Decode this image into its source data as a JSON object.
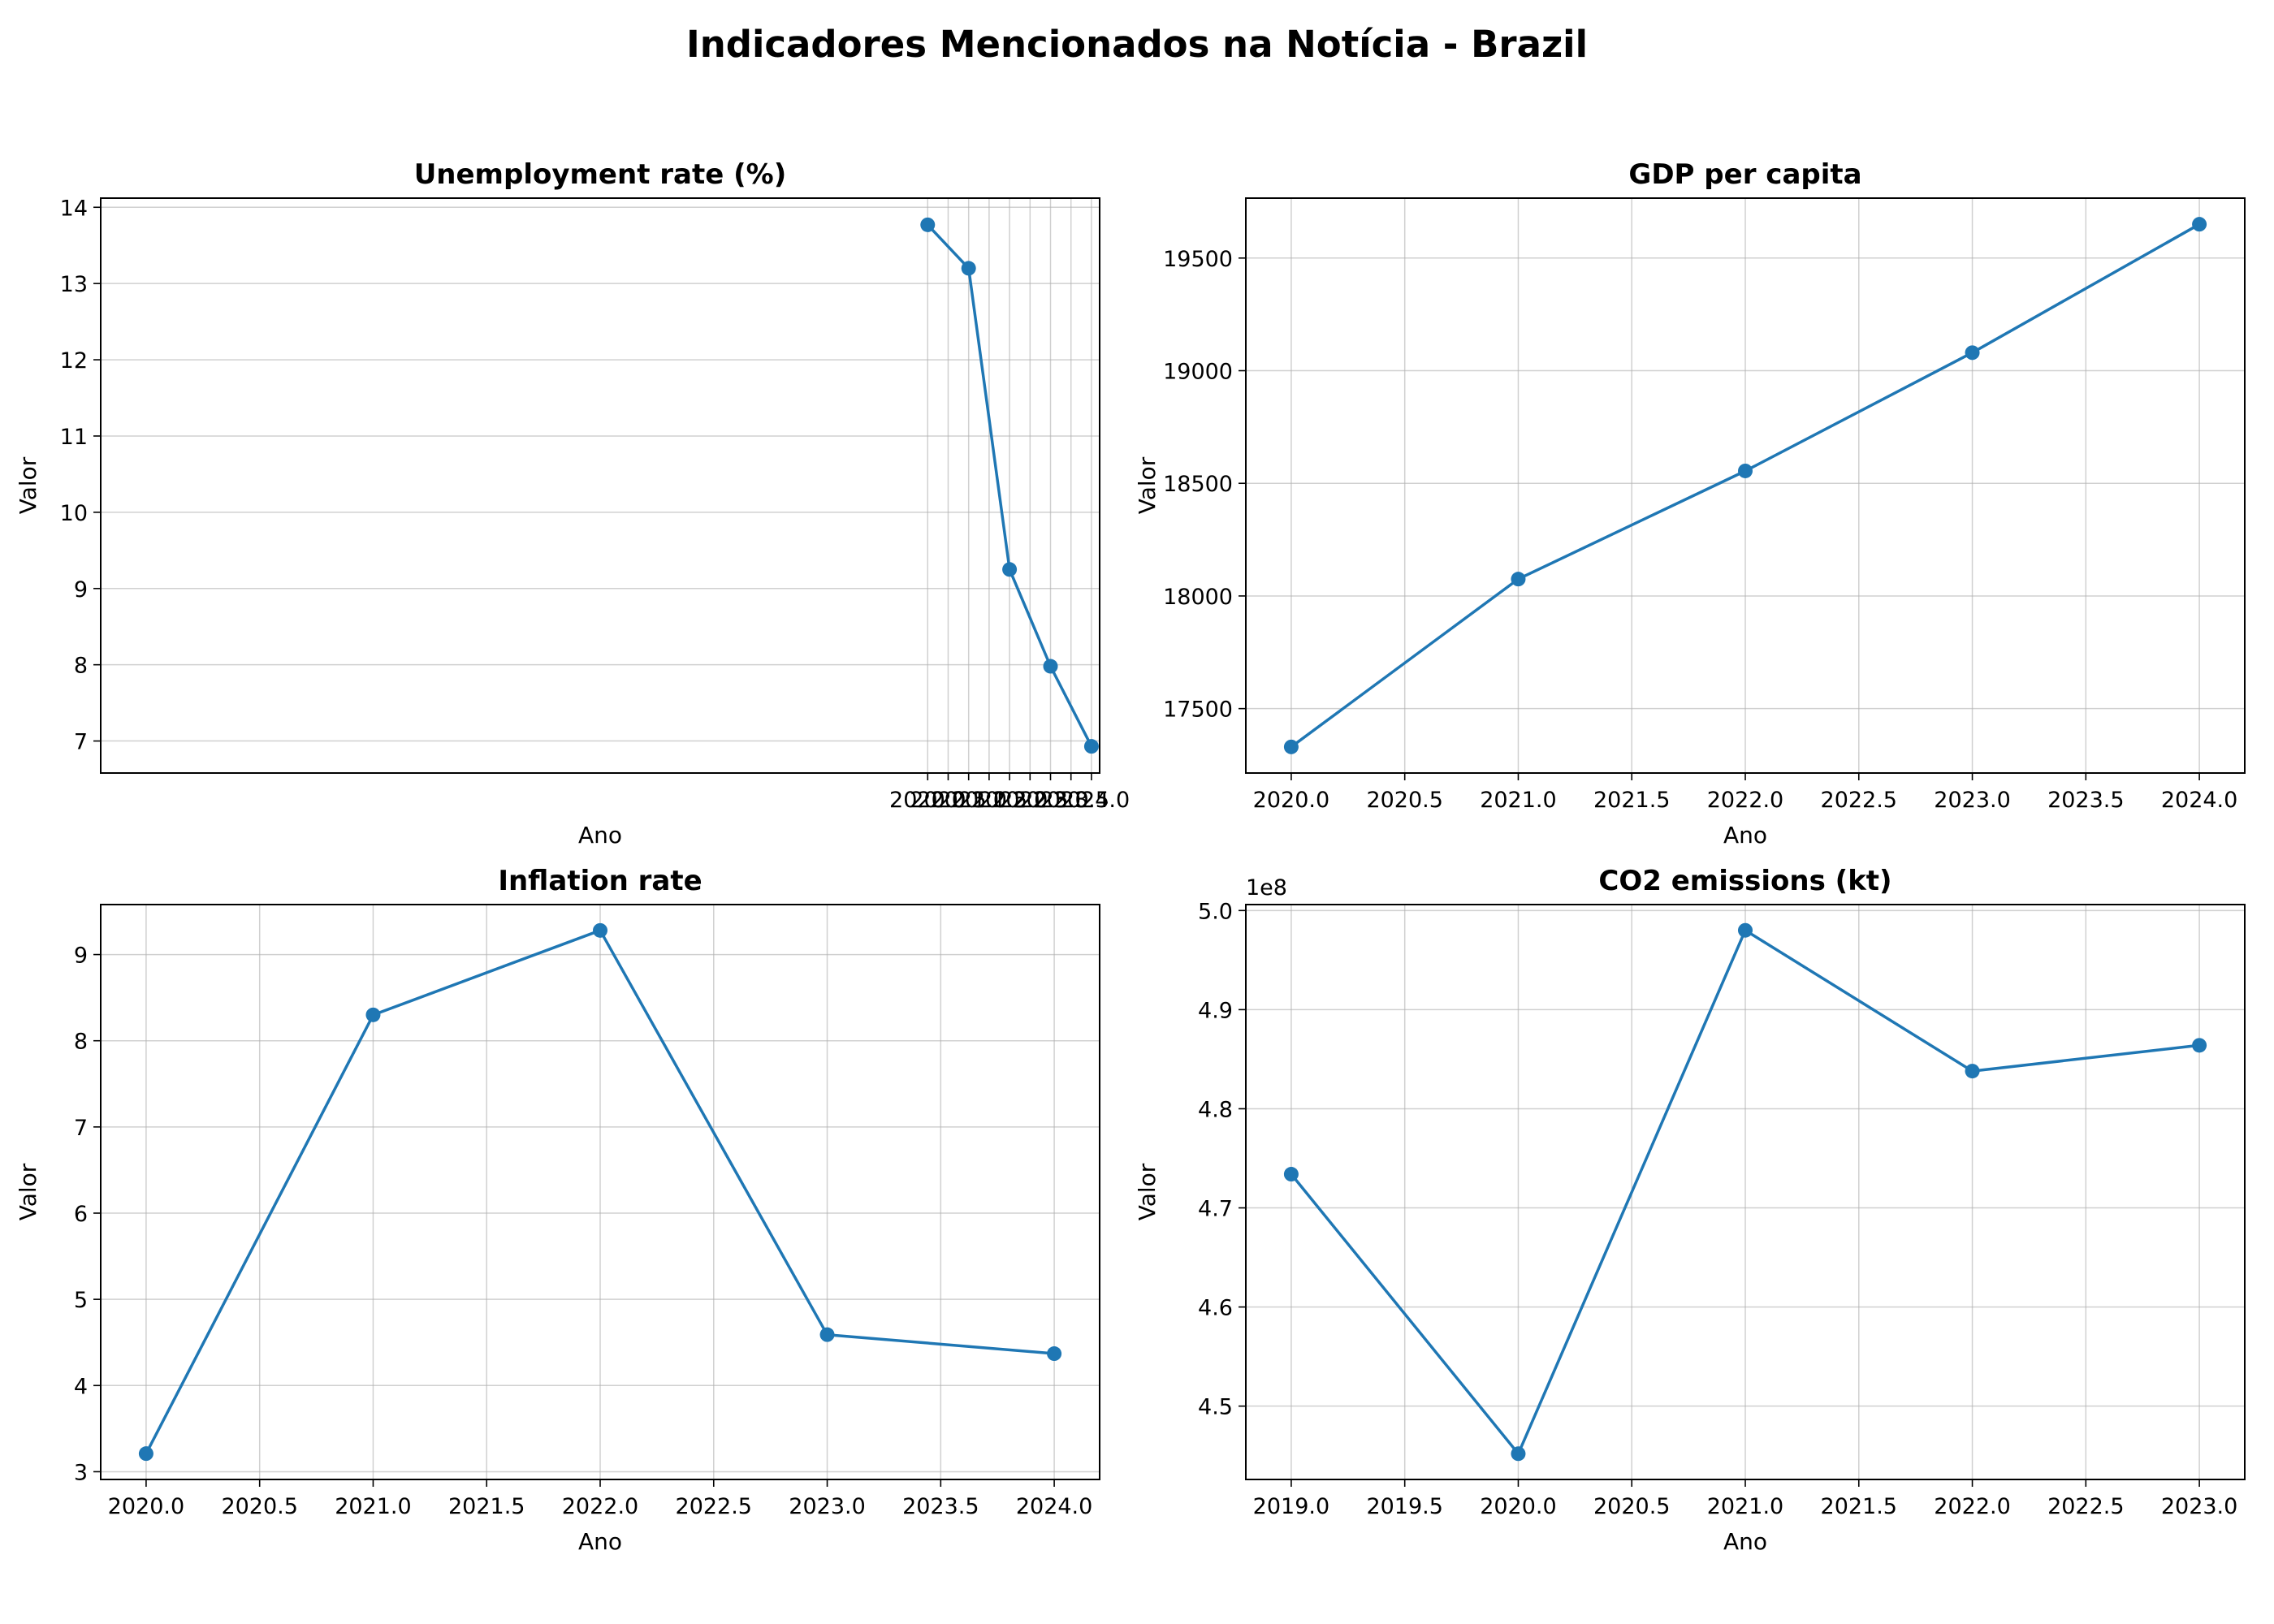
{
  "page_title": "Indicadores Mencionados na Notícia - Brazil",
  "chart_data": [
    {
      "type": "line",
      "title": "Unemployment rate (%)",
      "xlabel": "Ano",
      "ylabel": "Valor",
      "x": [
        2020,
        2021,
        2022,
        2023,
        2024
      ],
      "series": [
        {
          "values": [
            13.77,
            13.2,
            9.25,
            7.98,
            6.93
          ]
        }
      ],
      "xlim": [
        1999.8,
        2024.2
      ],
      "ylim": [
        6.58,
        14.12
      ],
      "xticks": [
        2020,
        2020.5,
        2021,
        2021.5,
        2022,
        2022.5,
        2023,
        2023.5,
        2024
      ],
      "yticks": [
        7,
        8,
        9,
        10,
        11,
        12,
        13,
        14
      ],
      "tick_labels_x": [
        "2020.0",
        "2020.5",
        "2021.0",
        "2021.5",
        "2022.0",
        "2022.5",
        "2023.0",
        "2023.5",
        "2024.0"
      ],
      "tick_labels_y": [
        "7",
        "8",
        "9",
        "10",
        "11",
        "12",
        "13",
        "14"
      ],
      "y_offset_text": "",
      "grid": true,
      "color": "#1f77b4"
    },
    {
      "type": "line",
      "title": "GDP per capita",
      "xlabel": "Ano",
      "ylabel": "Valor",
      "x": [
        2020,
        2021,
        2022,
        2023,
        2024
      ],
      "series": [
        {
          "values": [
            17330,
            18075,
            18555,
            19080,
            19650
          ]
        }
      ],
      "xlim": [
        2019.8,
        2024.2
      ],
      "ylim": [
        17214,
        19766
      ],
      "xticks": [
        2020,
        2020.5,
        2021,
        2021.5,
        2022,
        2022.5,
        2023,
        2023.5,
        2024
      ],
      "yticks": [
        17500,
        18000,
        18500,
        19000,
        19500
      ],
      "tick_labels_x": [
        "2020.0",
        "2020.5",
        "2021.0",
        "2021.5",
        "2022.0",
        "2022.5",
        "2023.0",
        "2023.5",
        "2024.0"
      ],
      "tick_labels_y": [
        "17500",
        "18000",
        "18500",
        "19000",
        "19500"
      ],
      "y_offset_text": "",
      "grid": true,
      "color": "#1f77b4"
    },
    {
      "type": "line",
      "title": "Inflation rate",
      "xlabel": "Ano",
      "ylabel": "Valor",
      "x": [
        2020,
        2021,
        2022,
        2023,
        2024
      ],
      "series": [
        {
          "values": [
            3.21,
            8.3,
            9.28,
            4.59,
            4.37
          ]
        }
      ],
      "xlim": [
        2019.8,
        2024.2
      ],
      "ylim": [
        2.91,
        9.58
      ],
      "xticks": [
        2020,
        2020.5,
        2021,
        2021.5,
        2022,
        2022.5,
        2023,
        2023.5,
        2024
      ],
      "yticks": [
        3,
        4,
        5,
        6,
        7,
        8,
        9
      ],
      "tick_labels_x": [
        "2020.0",
        "2020.5",
        "2021.0",
        "2021.5",
        "2022.0",
        "2022.5",
        "2023.0",
        "2023.5",
        "2024.0"
      ],
      "tick_labels_y": [
        "3",
        "4",
        "5",
        "6",
        "7",
        "8",
        "9"
      ],
      "y_offset_text": "",
      "grid": true,
      "color": "#1f77b4"
    },
    {
      "type": "line",
      "title": "CO2 emissions (kt)",
      "xlabel": "Ano",
      "ylabel": "Valor",
      "x": [
        2019,
        2020,
        2021,
        2022,
        2023
      ],
      "series": [
        {
          "values": [
            4.734,
            4.452,
            4.98,
            4.838,
            4.864
          ]
        }
      ],
      "xlim": [
        2018.8,
        2023.2
      ],
      "ylim": [
        4.426,
        5.006
      ],
      "xticks": [
        2019,
        2019.5,
        2020,
        2020.5,
        2021,
        2021.5,
        2022,
        2022.5,
        2023
      ],
      "yticks": [
        4.5,
        4.6,
        4.7,
        4.8,
        4.9,
        5.0
      ],
      "tick_labels_x": [
        "2019.0",
        "2019.5",
        "2020.0",
        "2020.5",
        "2021.0",
        "2021.5",
        "2022.0",
        "2022.5",
        "2023.0"
      ],
      "tick_labels_y": [
        "4.5",
        "4.6",
        "4.7",
        "4.8",
        "4.9",
        "5.0"
      ],
      "y_offset_text": "1e8",
      "grid": true,
      "color": "#1f77b4"
    }
  ]
}
